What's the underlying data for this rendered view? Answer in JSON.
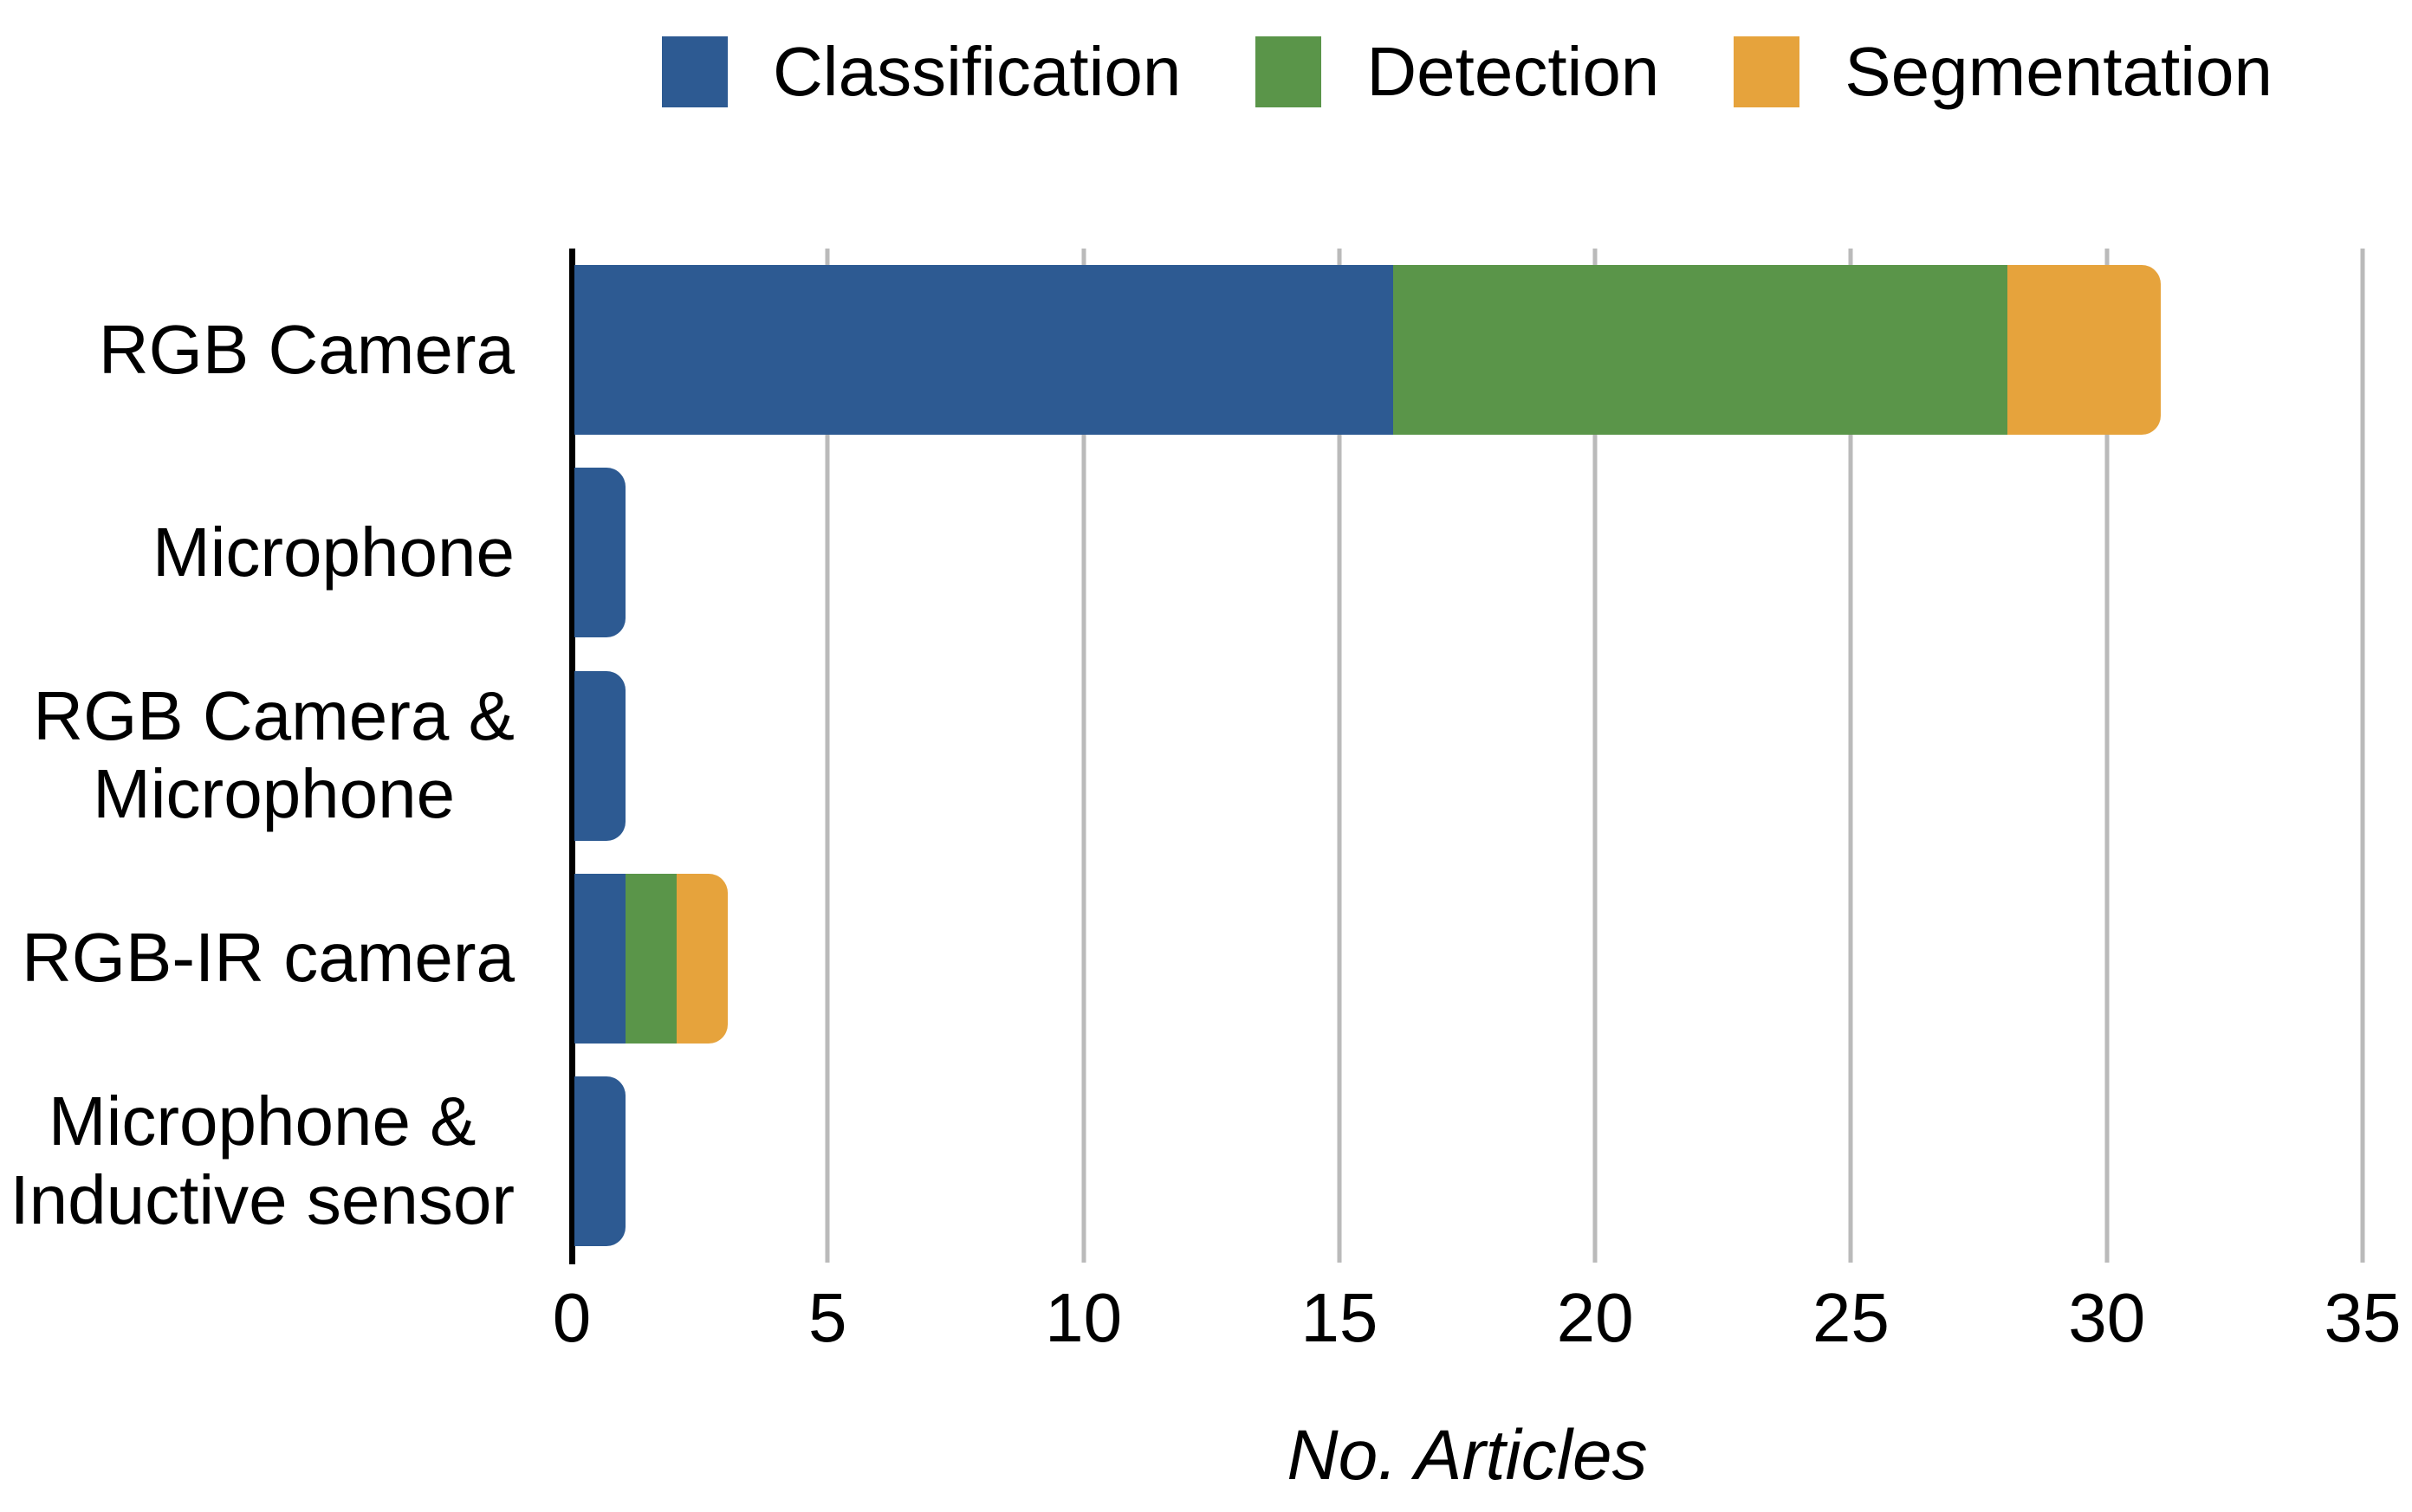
{
  "chart_data": {
    "type": "bar",
    "orientation": "horizontal",
    "stacked": true,
    "xlabel": "No. Articles",
    "xlim": [
      0,
      35
    ],
    "x_ticks": [
      0,
      5,
      10,
      15,
      20,
      25,
      30,
      35
    ],
    "grid": "vertical gridlines every 5, light gray, no bottom axis line",
    "legend_position": "top-center",
    "categories": [
      "RGB Camera",
      "Microphone",
      "RGB Camera &\nMicrophone",
      "RGB-IR camera",
      "Microphone &\nInductive sensor"
    ],
    "series": [
      {
        "name": "Classification",
        "color": "#2D5A92",
        "values": [
          16,
          1,
          1,
          1,
          1
        ]
      },
      {
        "name": "Detection",
        "color": "#5A9549",
        "values": [
          12,
          0,
          0,
          1,
          0
        ]
      },
      {
        "name": "Segmentation",
        "color": "#E6A33C",
        "values": [
          3,
          0,
          0,
          1,
          0
        ]
      }
    ],
    "totals": [
      31,
      1,
      1,
      3,
      1
    ]
  },
  "styles": {
    "background": "#FFFFFF",
    "text_color": "#000000",
    "axis_line_color": "#000000",
    "gridline_color": "#BABABA"
  }
}
